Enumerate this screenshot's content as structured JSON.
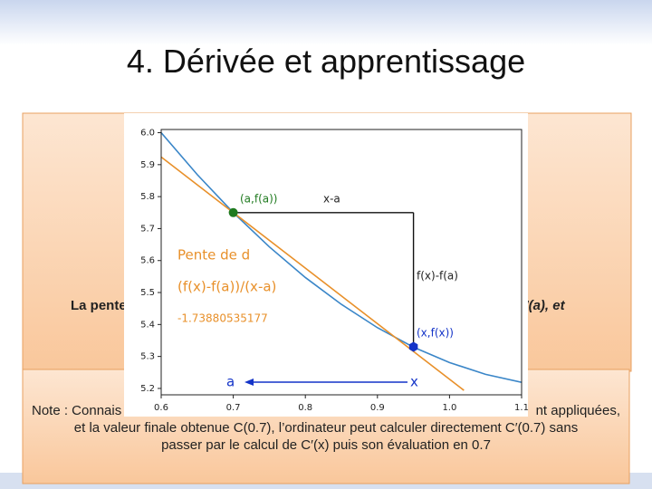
{
  "title": "4. Dérivée et apprentissage",
  "box_text": [
    "La pente",
    "f′(a), et"
  ],
  "note": {
    "line1_left": "Note : Connais",
    "line1_right": "nt appliquées,",
    "line2": "et la valeur finale obtenue C(0.7), l’ordinateur peut calculer directement C′(0.7) sans",
    "line3": "passer par le calcul de C′(x) puis son évaluation en 0.7"
  },
  "chart_data": {
    "type": "line",
    "xlim": [
      0.6,
      1.1
    ],
    "ylim": [
      5.18,
      6.01
    ],
    "xticks": [
      0.6,
      0.7,
      0.8,
      0.9,
      {
        "value": 1,
        "label": "1.0"
      },
      1.1
    ],
    "yticks": [
      5.2,
      5.3,
      5.4,
      5.5,
      5.6,
      5.7,
      5.8,
      5.9,
      {
        "value": 6,
        "label": "6.0"
      }
    ],
    "series": [
      {
        "color": "#3a86c8",
        "x": [
          0.6,
          0.65,
          0.7,
          0.75,
          0.8,
          0.85,
          0.9,
          0.95,
          1.0,
          1.05,
          1.1
        ],
        "values": [
          6.0,
          5.869,
          5.75,
          5.643,
          5.547,
          5.463,
          5.39,
          5.329,
          5.281,
          5.244,
          5.219
        ]
      },
      {
        "color": "#e8902a",
        "x": [
          0.6,
          1.02
        ],
        "values": [
          5.924,
          5.194
        ]
      }
    ],
    "points": [
      {
        "x": 0.7,
        "y": 5.75,
        "color": "#1f7a1f"
      },
      {
        "x": 0.95,
        "y": 5.33,
        "color": "#1434c8"
      }
    ],
    "annotations": [
      {
        "text": "(a,f(a))",
        "color": "#1f7a1f"
      },
      {
        "text": "x-a",
        "color": "#222222"
      },
      {
        "text": "f(x)-f(a)",
        "color": "#222222"
      },
      {
        "text": "(x,f(x))",
        "color": "#1434c8"
      },
      {
        "text": "Pente de d",
        "color": "#e8902a"
      },
      {
        "text": "(f(x)-f(a))/(x-a)",
        "color": "#e8902a"
      },
      {
        "text": "-1.73880535177",
        "color": "#e8902a"
      },
      {
        "text": "a",
        "color": "#1434c8"
      },
      {
        "text": "x",
        "color": "#1434c8"
      }
    ]
  }
}
